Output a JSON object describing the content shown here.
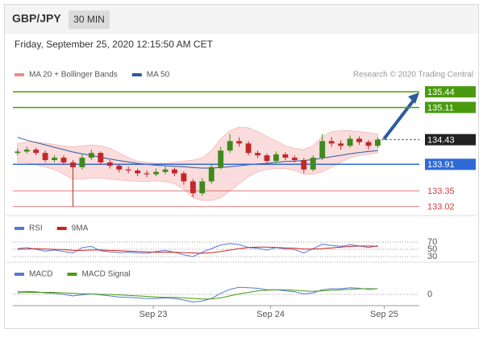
{
  "header": {
    "pair": "GBP/JPY",
    "timeframe": "30 MIN",
    "date": "Friday, September 25, 2020 12:15:50 AM CET"
  },
  "chart_data": [
    {
      "type": "candlestick",
      "credit": "Research © 2020 Trading Central",
      "legend": [
        {
          "name": "MA 20 + Bollinger Bands",
          "color": "#f08a8a"
        },
        {
          "name": "MA 50",
          "color": "#2d5b9a"
        }
      ],
      "xlim": [
        -0.5,
        43.5
      ],
      "ylim": [
        132.88,
        135.68
      ],
      "up_color": "#3f8a1c",
      "down_color": "#c0282a",
      "candles": [
        [
          134.15,
          134.24,
          134.1,
          134.18
        ],
        [
          134.18,
          134.28,
          134.14,
          134.22
        ],
        [
          134.22,
          134.26,
          134.1,
          134.15
        ],
        [
          134.15,
          134.2,
          133.95,
          134.0
        ],
        [
          134.0,
          134.1,
          133.95,
          134.05
        ],
        [
          134.05,
          134.1,
          133.9,
          133.95
        ],
        [
          133.95,
          134.0,
          133.02,
          133.85
        ],
        [
          133.85,
          134.12,
          133.8,
          134.05
        ],
        [
          134.05,
          134.22,
          134.0,
          134.15
        ],
        [
          134.15,
          134.18,
          133.9,
          133.95
        ],
        [
          133.95,
          134.0,
          133.82,
          133.88
        ],
        [
          133.88,
          133.92,
          133.74,
          133.8
        ],
        [
          133.8,
          133.86,
          133.72,
          133.78
        ],
        [
          133.78,
          133.82,
          133.66,
          133.72
        ],
        [
          133.72,
          133.78,
          133.64,
          133.7
        ],
        [
          133.7,
          133.82,
          133.66,
          133.75
        ],
        [
          133.75,
          133.86,
          133.7,
          133.8
        ],
        [
          133.8,
          133.84,
          133.66,
          133.72
        ],
        [
          133.72,
          133.76,
          133.48,
          133.55
        ],
        [
          133.55,
          133.6,
          133.22,
          133.3
        ],
        [
          133.3,
          133.62,
          133.25,
          133.55
        ],
        [
          133.55,
          133.92,
          133.5,
          133.85
        ],
        [
          133.85,
          134.28,
          133.8,
          134.2
        ],
        [
          134.2,
          134.55,
          134.15,
          134.4
        ],
        [
          134.4,
          134.48,
          134.28,
          134.35
        ],
        [
          134.35,
          134.4,
          134.1,
          134.15
        ],
        [
          134.15,
          134.2,
          134.04,
          134.1
        ],
        [
          134.1,
          134.14,
          133.92,
          133.98
        ],
        [
          133.98,
          134.18,
          133.94,
          134.12
        ],
        [
          134.12,
          134.16,
          134.0,
          134.05
        ],
        [
          134.05,
          134.1,
          133.95,
          134.0
        ],
        [
          134.0,
          134.04,
          133.72,
          133.8
        ],
        [
          133.8,
          134.1,
          133.76,
          134.05
        ],
        [
          134.05,
          134.55,
          134.0,
          134.4
        ],
        [
          134.4,
          134.48,
          134.28,
          134.35
        ],
        [
          134.35,
          134.42,
          134.22,
          134.3
        ],
        [
          134.3,
          134.52,
          134.26,
          134.45
        ],
        [
          134.45,
          134.5,
          134.32,
          134.38
        ],
        [
          134.38,
          134.42,
          134.22,
          134.3
        ],
        [
          134.3,
          134.48,
          134.26,
          134.43
        ]
      ],
      "bollinger_upper": [
        134.35,
        134.38,
        134.38,
        134.36,
        134.33,
        134.3,
        134.28,
        134.3,
        134.32,
        134.3,
        134.25,
        134.15,
        134.05,
        133.98,
        133.95,
        133.93,
        133.93,
        133.95,
        133.98,
        134.0,
        134.05,
        134.2,
        134.45,
        134.62,
        134.7,
        134.68,
        134.6,
        134.5,
        134.4,
        134.3,
        134.25,
        134.22,
        134.3,
        134.5,
        134.6,
        134.62,
        134.62,
        134.6,
        134.58,
        134.55
      ],
      "bollinger_lower": [
        133.95,
        133.95,
        133.9,
        133.85,
        133.8,
        133.7,
        133.6,
        133.6,
        133.62,
        133.62,
        133.6,
        133.58,
        133.56,
        133.55,
        133.55,
        133.56,
        133.55,
        133.5,
        133.38,
        133.2,
        133.15,
        133.15,
        133.2,
        133.35,
        133.5,
        133.65,
        133.75,
        133.8,
        133.82,
        133.82,
        133.78,
        133.7,
        133.7,
        133.75,
        133.85,
        133.95,
        134.05,
        134.1,
        134.12,
        134.15
      ],
      "ma50": [
        134.48,
        134.42,
        134.37,
        134.32,
        134.27,
        134.22,
        134.17,
        134.13,
        134.1,
        134.06,
        134.02,
        133.99,
        133.96,
        133.93,
        133.91,
        133.89,
        133.88,
        133.87,
        133.86,
        133.84,
        133.83,
        133.83,
        133.84,
        133.86,
        133.88,
        133.9,
        133.92,
        133.93,
        133.95,
        133.97,
        133.98,
        133.99,
        134.01,
        134.04,
        134.07,
        134.1,
        134.13,
        134.16,
        134.18,
        134.2
      ],
      "levels": [
        {
          "value": 135.44,
          "color": "#4a9a10",
          "boxed": true,
          "dotted": false
        },
        {
          "value": 135.11,
          "color": "#4a9a10",
          "boxed": true,
          "dotted": false
        },
        {
          "value": 134.43,
          "color": "#222222",
          "boxed": true,
          "dotted": true
        },
        {
          "value": 133.91,
          "color": "#2f6ad8",
          "boxed": true,
          "dotted": false
        },
        {
          "value": 133.35,
          "color": "#d04040",
          "boxed": false,
          "dotted": false
        },
        {
          "value": 133.02,
          "color": "#d04040",
          "boxed": false,
          "dotted": false
        }
      ]
    },
    {
      "type": "line",
      "xlim": [
        -0.5,
        43.5
      ],
      "ylim": [
        20,
        80
      ],
      "yticks": [
        30,
        50,
        70
      ],
      "series": [
        {
          "name": "RSI",
          "color": "#5a78d8",
          "values": [
            52,
            55,
            50,
            45,
            48,
            44,
            40,
            55,
            58,
            46,
            43,
            41,
            42,
            40,
            39,
            44,
            47,
            42,
            35,
            30,
            42,
            52,
            62,
            66,
            63,
            55,
            53,
            48,
            55,
            51,
            49,
            40,
            52,
            64,
            61,
            58,
            63,
            59,
            55,
            60
          ]
        },
        {
          "name": "9MA",
          "color": "#d02020",
          "values": [
            50,
            51,
            52,
            51,
            50,
            49,
            47,
            47,
            48,
            48,
            47,
            46,
            45,
            44,
            43,
            42,
            42,
            42,
            41,
            40,
            39,
            41,
            44,
            48,
            52,
            55,
            56,
            56,
            55,
            54,
            53,
            51,
            51,
            52,
            54,
            56,
            58,
            59,
            59,
            58
          ]
        }
      ]
    },
    {
      "type": "line",
      "xlim": [
        -0.5,
        43.5
      ],
      "ylim": [
        -0.3,
        0.3
      ],
      "yticks": [
        0
      ],
      "xticks": [
        {
          "value": 14.7,
          "label": "Sep 23"
        },
        {
          "value": 27.4,
          "label": "Sep 24"
        },
        {
          "value": 39.7,
          "label": "Sep 25"
        }
      ],
      "series": [
        {
          "name": "MACD",
          "color": "#5a78d8",
          "values": [
            0.05,
            0.06,
            0.05,
            0.03,
            0.02,
            0.0,
            -0.03,
            -0.01,
            0.01,
            -0.01,
            -0.03,
            -0.05,
            -0.06,
            -0.07,
            -0.08,
            -0.08,
            -0.07,
            -0.08,
            -0.11,
            -0.15,
            -0.13,
            -0.08,
            0.02,
            0.1,
            0.14,
            0.13,
            0.12,
            0.09,
            0.09,
            0.07,
            0.05,
            0.01,
            0.03,
            0.09,
            0.11,
            0.11,
            0.13,
            0.12,
            0.1,
            0.11
          ]
        },
        {
          "name": "MACD Signal",
          "color": "#4a9a10",
          "values": [
            0.03,
            0.04,
            0.04,
            0.04,
            0.04,
            0.03,
            0.02,
            0.01,
            0.01,
            0.0,
            0.0,
            -0.01,
            -0.02,
            -0.03,
            -0.04,
            -0.05,
            -0.06,
            -0.06,
            -0.07,
            -0.08,
            -0.09,
            -0.09,
            -0.07,
            -0.03,
            0.01,
            0.04,
            0.07,
            0.08,
            0.09,
            0.09,
            0.08,
            0.07,
            0.06,
            0.07,
            0.08,
            0.09,
            0.1,
            0.11,
            0.11,
            0.11
          ]
        }
      ]
    }
  ]
}
